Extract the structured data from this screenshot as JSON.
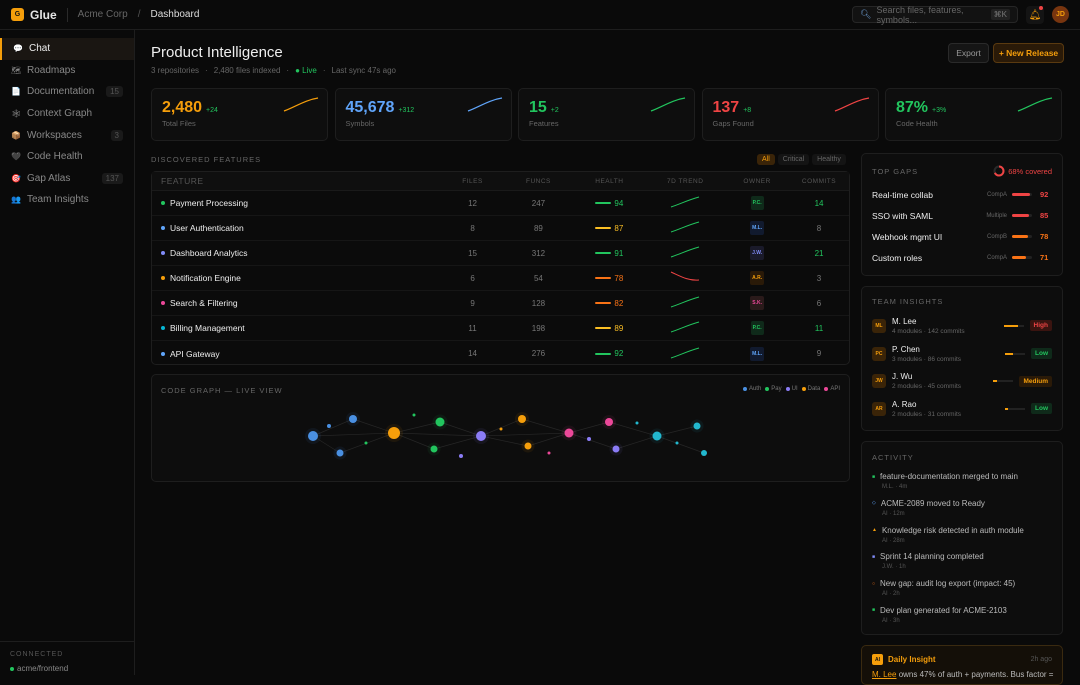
{
  "topbar": {
    "logo": "G",
    "brand": "Glue",
    "org": "Acme Corp",
    "page": "Dashboard",
    "search_placeholder": "Search files, features, symbols...",
    "shortcut": "⌘K",
    "avatar": "JD"
  },
  "sidebar": {
    "items": [
      {
        "label": "Chat",
        "icon": "💬",
        "active": true
      },
      {
        "label": "Roadmaps",
        "icon": "🗺"
      },
      {
        "label": "Documentation",
        "icon": "📄",
        "badge": "15"
      },
      {
        "label": "Context Graph",
        "icon": "🕸"
      },
      {
        "label": "Workspaces",
        "icon": "📦",
        "badge": "3"
      },
      {
        "label": "Code Health",
        "icon": "🖤"
      },
      {
        "label": "Gap Atlas",
        "icon": "🎯",
        "badge": "137"
      },
      {
        "label": "Team Insights",
        "icon": "👥"
      }
    ],
    "connected_label": "CONNECTED",
    "repo": "acme/frontend"
  },
  "header": {
    "title": "Product Intelligence",
    "repos": "3 repositories",
    "files": "2,480 files indexed",
    "live": "Live",
    "sync": "Last sync 47s ago",
    "export": "Export",
    "new_release": "+ New Release"
  },
  "stats": [
    {
      "value": "2,480",
      "delta": "+24",
      "label": "Total Files",
      "color": "#f59e0b"
    },
    {
      "value": "45,678",
      "delta": "+312",
      "label": "Symbols",
      "color": "#60a5fa"
    },
    {
      "value": "15",
      "delta": "+2",
      "label": "Features",
      "color": "#22c55e"
    },
    {
      "value": "137",
      "delta": "+8",
      "label": "Gaps Found",
      "color": "#ef4444"
    },
    {
      "value": "87%",
      "delta": "+3%",
      "label": "Code Health",
      "color": "#22c55e"
    }
  ],
  "features": {
    "title": "DISCOVERED FEATURES",
    "filters": [
      "All",
      "Critical",
      "Healthy"
    ],
    "columns": [
      "FEATURE",
      "FILES",
      "FUNCS",
      "HEALTH",
      "7D TREND",
      "OWNER",
      "COMMITS"
    ],
    "rows": [
      {
        "name": "Payment Processing",
        "dot": "#22c55e",
        "files": "12",
        "funcs": "247",
        "health": "94",
        "owner": "P.C.",
        "commits": "14",
        "trend": "up"
      },
      {
        "name": "User Authentication",
        "dot": "#60a5fa",
        "files": "8",
        "funcs": "89",
        "health": "87",
        "owner": "M.L.",
        "commits": "8",
        "trend": "up"
      },
      {
        "name": "Dashboard Analytics",
        "dot": "#818cf8",
        "files": "15",
        "funcs": "312",
        "health": "91",
        "owner": "J.W.",
        "commits": "21",
        "trend": "up"
      },
      {
        "name": "Notification Engine",
        "dot": "#f59e0b",
        "files": "6",
        "funcs": "54",
        "health": "78",
        "owner": "A.R.",
        "commits": "3",
        "trend": "down"
      },
      {
        "name": "Search & Filtering",
        "dot": "#ec4899",
        "files": "9",
        "funcs": "128",
        "health": "82",
        "owner": "S.K.",
        "commits": "6",
        "trend": "up"
      },
      {
        "name": "Billing Management",
        "dot": "#06b6d4",
        "files": "11",
        "funcs": "198",
        "health": "89",
        "owner": "P.C.",
        "commits": "11",
        "trend": "up"
      },
      {
        "name": "API Gateway",
        "dot": "#60a5fa",
        "files": "14",
        "funcs": "276",
        "health": "92",
        "owner": "M.L.",
        "commits": "9",
        "trend": "up"
      }
    ]
  },
  "graph": {
    "title": "CODE GRAPH — LIVE VIEW",
    "legend": [
      {
        "label": "Auth",
        "color": "#4a90e2"
      },
      {
        "label": "Pay",
        "color": "#22c55e"
      },
      {
        "label": "UI",
        "color": "#8b7cf6"
      },
      {
        "label": "Data",
        "color": "#f59e0b"
      },
      {
        "label": "API",
        "color": "#ec4899"
      }
    ]
  },
  "top_gaps": {
    "title": "TOP GAPS",
    "coverage": "68% covered",
    "coverage_pct": 68,
    "items": [
      {
        "name": "Real-time collab",
        "source": "CompA",
        "score": "92",
        "color": "#ef4444"
      },
      {
        "name": "SSO with SAML",
        "source": "Multiple",
        "score": "85",
        "color": "#ef4444"
      },
      {
        "name": "Webhook mgmt UI",
        "source": "CompB",
        "score": "78",
        "color": "#f97316"
      },
      {
        "name": "Custom roles",
        "source": "CompA",
        "score": "71",
        "color": "#f97316"
      }
    ]
  },
  "team": {
    "title": "TEAM INSIGHTS",
    "members": [
      {
        "initials": "ML",
        "name": "M. Lee",
        "sub": "4 modules · 142 commits",
        "risk": "High",
        "share": 47
      },
      {
        "initials": "PC",
        "name": "P. Chen",
        "sub": "3 modules · 86 commits",
        "risk": "Low",
        "share": 25
      },
      {
        "initials": "JW",
        "name": "J. Wu",
        "sub": "2 modules · 45 commits",
        "risk": "Medium",
        "share": 12
      },
      {
        "initials": "AR",
        "name": "A. Rao",
        "sub": "2 modules · 31 commits",
        "risk": "Low",
        "share": 10
      }
    ]
  },
  "activity": {
    "title": "ACTIVITY",
    "items": [
      {
        "text": "feature-documentation merged to main",
        "sub": "M.L. · 4m",
        "icon": "■",
        "color": "#22c55e"
      },
      {
        "text": "ACME-2089 moved to Ready",
        "sub": "AI · 12m",
        "icon": "◇",
        "color": "#60a5fa"
      },
      {
        "text": "Knowledge risk detected in auth module",
        "sub": "AI · 28m",
        "icon": "▲",
        "color": "#f59e0b"
      },
      {
        "text": "Sprint 14 planning completed",
        "sub": "J.W. · 1h",
        "icon": "■",
        "color": "#818cf8"
      },
      {
        "text": "New gap: audit log export (impact: 45)",
        "sub": "AI · 2h",
        "icon": "○",
        "color": "#f97316"
      },
      {
        "text": "Dev plan generated for ACME-2103",
        "sub": "AI · 3h",
        "icon": "■",
        "color": "#22c55e"
      }
    ]
  },
  "insight": {
    "badge": "AI",
    "title": "Daily Insight",
    "time": "2h ago",
    "name": "M. Lee",
    "text": " owns 47% of auth + payments. Bus factor ="
  }
}
